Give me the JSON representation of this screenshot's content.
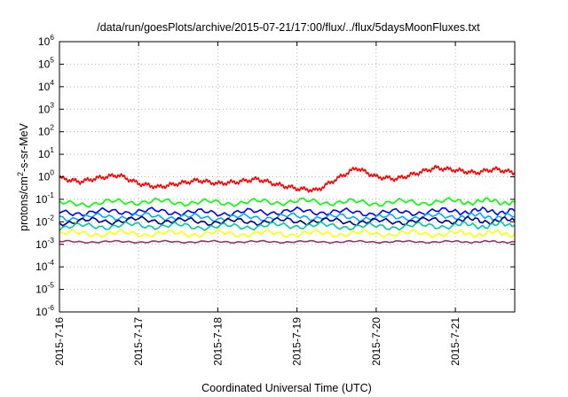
{
  "chart_data": {
    "type": "line",
    "title": "/data/run/goesPlots/archive/2015-07-21/17:00/flux/../flux/5daysMoonFluxes.txt",
    "xlabel": "Coordinated Universal Time (UTC)",
    "ylabel_parts": {
      "base": "protons/cm",
      "exp": "2",
      "rest": "-s-sr-MeV"
    },
    "x_range_days": [
      "2015-07-16",
      "2015-07-21T18:00"
    ],
    "x_ticks": [
      "2015-7-16",
      "2015-7-17",
      "2015-7-18",
      "2015-7-19",
      "2015-7-20",
      "2015-7-21"
    ],
    "y_scale": "log",
    "ylim": [
      1e-06,
      1000000.0
    ],
    "y_ticks": [
      {
        "base": "10",
        "exp": "-6"
      },
      {
        "base": "10",
        "exp": "-5"
      },
      {
        "base": "10",
        "exp": "-4"
      },
      {
        "base": "10",
        "exp": "-3"
      },
      {
        "base": "10",
        "exp": "-2"
      },
      {
        "base": "10",
        "exp": "-1"
      },
      {
        "base": "10",
        "exp": "0"
      },
      {
        "base": "10",
        "exp": "1"
      },
      {
        "base": "10",
        "exp": "2"
      },
      {
        "base": "10",
        "exp": "3"
      },
      {
        "base": "10",
        "exp": "4"
      },
      {
        "base": "10",
        "exp": "5"
      },
      {
        "base": "10",
        "exp": "6"
      }
    ],
    "grid": true,
    "series": [
      {
        "color": "#ff0000",
        "x": [
          "2015-07-16T00:00",
          "2015-07-16T06:00",
          "2015-07-16T12:00",
          "2015-07-16T18:00",
          "2015-07-17T00:00",
          "2015-07-17T06:00",
          "2015-07-17T12:00",
          "2015-07-17T18:00",
          "2015-07-18T00:00",
          "2015-07-18T06:00",
          "2015-07-18T12:00",
          "2015-07-18T18:00",
          "2015-07-19T00:00",
          "2015-07-19T06:00",
          "2015-07-19T12:00",
          "2015-07-19T18:00",
          "2015-07-20T00:00",
          "2015-07-20T06:00",
          "2015-07-20T12:00",
          "2015-07-20T18:00",
          "2015-07-21T00:00",
          "2015-07-21T06:00",
          "2015-07-21T12:00",
          "2015-07-21T18:00"
        ],
        "y": [
          0.9,
          0.6,
          0.9,
          1.2,
          0.5,
          0.35,
          0.5,
          0.7,
          0.5,
          0.6,
          0.8,
          0.45,
          0.3,
          0.25,
          0.8,
          2.5,
          1.0,
          0.8,
          1.4,
          2.5,
          2.0,
          1.5,
          2.2,
          1.5
        ]
      },
      {
        "color": "#00ff00",
        "x": [
          "2015-07-16T00:00",
          "2015-07-17T00:00",
          "2015-07-18T00:00",
          "2015-07-19T00:00",
          "2015-07-20T00:00",
          "2015-07-21T00:00",
          "2015-07-21T18:00"
        ],
        "y": [
          0.06,
          0.08,
          0.07,
          0.08,
          0.07,
          0.08,
          0.08
        ]
      },
      {
        "color": "#0000ff",
        "x": [
          "2015-07-16T00:00",
          "2015-07-17T00:00",
          "2015-07-18T00:00",
          "2015-07-19T00:00",
          "2015-07-20T00:00",
          "2015-07-21T00:00",
          "2015-07-21T18:00"
        ],
        "y": [
          0.025,
          0.03,
          0.025,
          0.03,
          0.025,
          0.03,
          0.03
        ]
      },
      {
        "color": "#00aaff",
        "x": [
          "2015-07-16T00:00",
          "2015-07-17T00:00",
          "2015-07-18T00:00",
          "2015-07-19T00:00",
          "2015-07-20T00:00",
          "2015-07-21T00:00",
          "2015-07-21T18:00"
        ],
        "y": [
          0.015,
          0.018,
          0.015,
          0.017,
          0.015,
          0.018,
          0.017
        ]
      },
      {
        "color": "#000080",
        "x": [
          "2015-07-16T00:00",
          "2015-07-17T00:00",
          "2015-07-18T00:00",
          "2015-07-19T00:00",
          "2015-07-20T00:00",
          "2015-07-21T00:00",
          "2015-07-21T18:00"
        ],
        "y": [
          0.01,
          0.012,
          0.01,
          0.011,
          0.01,
          0.012,
          0.011
        ]
      },
      {
        "color": "#00c8a0",
        "x": [
          "2015-07-16T00:00",
          "2015-07-17T00:00",
          "2015-07-18T00:00",
          "2015-07-19T00:00",
          "2015-07-20T00:00",
          "2015-07-21T00:00",
          "2015-07-21T18:00"
        ],
        "y": [
          0.006,
          0.007,
          0.006,
          0.007,
          0.006,
          0.007,
          0.007
        ]
      },
      {
        "color": "#ffff00",
        "x": [
          "2015-07-16T00:00",
          "2015-07-17T00:00",
          "2015-07-18T00:00",
          "2015-07-19T00:00",
          "2015-07-20T00:00",
          "2015-07-21T00:00",
          "2015-07-21T18:00"
        ],
        "y": [
          0.003,
          0.003,
          0.003,
          0.003,
          0.003,
          0.003,
          0.003
        ]
      },
      {
        "color": "#993366",
        "x": [
          "2015-07-16T00:00",
          "2015-07-17T00:00",
          "2015-07-18T00:00",
          "2015-07-19T00:00",
          "2015-07-20T00:00",
          "2015-07-21T00:00",
          "2015-07-21T18:00"
        ],
        "y": [
          0.0013,
          0.0013,
          0.0013,
          0.0013,
          0.0013,
          0.0013,
          0.0013
        ]
      }
    ]
  }
}
